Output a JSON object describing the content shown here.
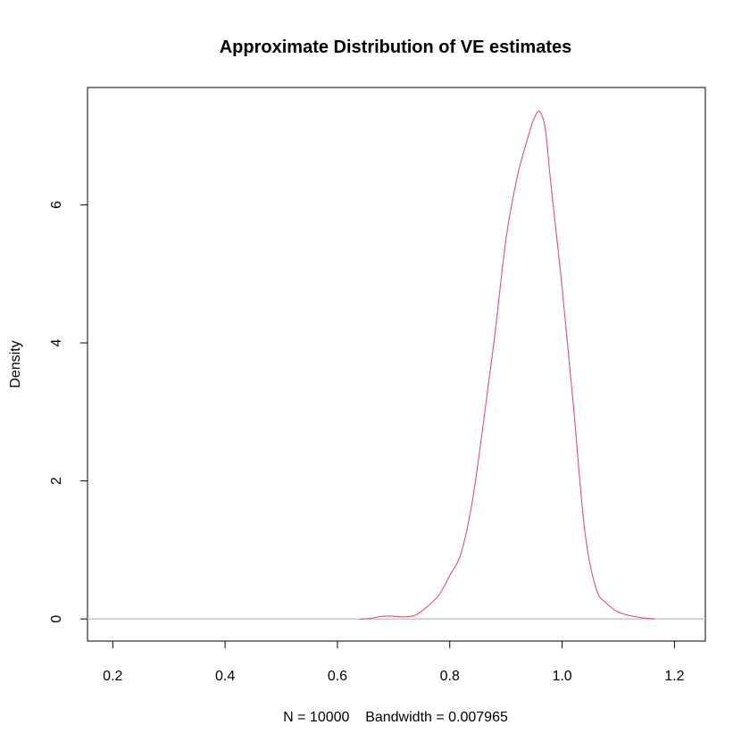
{
  "chart_data": {
    "type": "line",
    "title": "Approximate Distribution of VE estimates",
    "xlabel": "N = 10000    Bandwidth = 0.007965",
    "ylabel": "Density",
    "xlim": [
      0.155,
      1.255
    ],
    "ylim": [
      -0.32,
      7.7
    ],
    "x_ticks": [
      0.2,
      0.4,
      0.6,
      0.8,
      1.0,
      1.2
    ],
    "x_tick_labels": [
      "0.2",
      "0.4",
      "0.6",
      "0.8",
      "1.0",
      "1.2"
    ],
    "y_ticks": [
      0,
      2,
      4,
      6
    ],
    "y_tick_labels": [
      "0",
      "2",
      "4",
      "6"
    ],
    "grid": false,
    "baseline": 0,
    "line_color": "#DF536B",
    "baseline_color": "#BEBEBE",
    "series": [
      {
        "x": [
          0.64,
          0.66,
          0.68,
          0.7,
          0.72,
          0.74,
          0.76,
          0.78,
          0.8,
          0.82,
          0.84,
          0.86,
          0.88,
          0.9,
          0.92,
          0.94,
          0.95,
          0.96,
          0.97,
          0.98,
          1.0,
          1.02,
          1.04,
          1.06,
          1.08,
          1.1,
          1.12,
          1.14,
          1.165
        ],
        "y": [
          0.0,
          0.01,
          0.04,
          0.04,
          0.03,
          0.06,
          0.18,
          0.34,
          0.63,
          0.95,
          1.7,
          2.85,
          4.1,
          5.5,
          6.4,
          7.0,
          7.25,
          7.35,
          7.1,
          6.3,
          4.8,
          3.1,
          1.3,
          0.45,
          0.22,
          0.1,
          0.05,
          0.02,
          0.0
        ]
      }
    ]
  }
}
